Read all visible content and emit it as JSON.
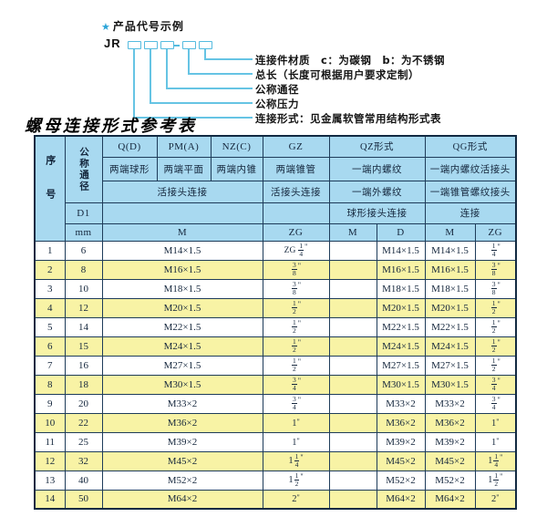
{
  "diagram": {
    "star": "★",
    "heading": "产品代号示例",
    "code_prefix": "JR",
    "box_count": 5,
    "separator": "-",
    "labels": [
      "连接件材质　c：为碳钢　b：为不锈钢",
      "总长（长度可根据用户要求定制）",
      "公称通径",
      "公称压力",
      "连接形式：见金属软管常用结构形式表"
    ]
  },
  "table": {
    "title": "螺母连接形式参考表",
    "header": {
      "seq": "序号",
      "dn": "公称通径",
      "d1": "D1",
      "mm": "mm",
      "col_q": "Q(D)",
      "col_pm": "PM(A)",
      "col_nz": "NZ(C)",
      "col_gz": "GZ",
      "col_qz": "QZ形式",
      "col_qg": "QG形式",
      "sub_q": "两端球形",
      "sub_pm": "两端平面",
      "sub_nz": "两端内锥",
      "sub_gz": "两端锥管",
      "sub_qz": "一端内螺纹",
      "sub_qg": "一端内螺纹活接头",
      "row3_left": "活接头连接",
      "row3_gz": "活接头连接",
      "row3_qz": "一端外螺纹",
      "row3_qg": "一端锥管螺纹接头",
      "row4_qz": "球形接头连接",
      "row4_qg": "连接",
      "unit_m": "M",
      "unit_zg": "ZG",
      "unit_qz_m": "M",
      "unit_qz_d": "D",
      "unit_qg_m": "M",
      "unit_qg_zg": "ZG"
    },
    "rows": [
      {
        "seq": "1",
        "mm": "6",
        "m": "M14×1.5",
        "zg": {
          "pre": "ZG",
          "num": "1",
          "den": "4"
        },
        "qz_m": "",
        "qz_d": "M14×1.5",
        "qg_m": "M14×1.5",
        "qg_zg": {
          "num": "1",
          "den": "4"
        }
      },
      {
        "seq": "2",
        "mm": "8",
        "m": "M16×1.5",
        "zg": {
          "num": "3",
          "den": "8"
        },
        "qz_m": "",
        "qz_d": "M16×1.5",
        "qg_m": "M16×1.5",
        "qg_zg": {
          "num": "3",
          "den": "8"
        }
      },
      {
        "seq": "3",
        "mm": "10",
        "m": "M18×1.5",
        "zg": {
          "num": "3",
          "den": "8"
        },
        "qz_m": "",
        "qz_d": "M18×1.5",
        "qg_m": "M18×1.5",
        "qg_zg": {
          "num": "3",
          "den": "8"
        }
      },
      {
        "seq": "4",
        "mm": "12",
        "m": "M20×1.5",
        "zg": {
          "num": "1",
          "den": "2"
        },
        "qz_m": "",
        "qz_d": "M20×1.5",
        "qg_m": "M20×1.5",
        "qg_zg": {
          "num": "1",
          "den": "2"
        }
      },
      {
        "seq": "5",
        "mm": "14",
        "m": "M22×1.5",
        "zg": {
          "num": "1",
          "den": "2"
        },
        "qz_m": "",
        "qz_d": "M22×1.5",
        "qg_m": "M22×1.5",
        "qg_zg": {
          "num": "1",
          "den": "2"
        }
      },
      {
        "seq": "6",
        "mm": "15",
        "m": "M24×1.5",
        "zg": {
          "num": "1",
          "den": "2"
        },
        "qz_m": "",
        "qz_d": "M24×1.5",
        "qg_m": "M24×1.5",
        "qg_zg": {
          "num": "1",
          "den": "2"
        }
      },
      {
        "seq": "7",
        "mm": "16",
        "m": "M27×1.5",
        "zg": {
          "num": "1",
          "den": "2"
        },
        "qz_m": "",
        "qz_d": "M27×1.5",
        "qg_m": "M27×1.5",
        "qg_zg": {
          "num": "1",
          "den": "2"
        }
      },
      {
        "seq": "8",
        "mm": "18",
        "m": "M30×1.5",
        "zg": {
          "num": "3",
          "den": "4"
        },
        "qz_m": "",
        "qz_d": "M30×1.5",
        "qg_m": "M30×1.5",
        "qg_zg": {
          "num": "3",
          "den": "4"
        }
      },
      {
        "seq": "9",
        "mm": "20",
        "m": "M33×2",
        "zg": {
          "num": "3",
          "den": "4"
        },
        "qz_m": "",
        "qz_d": "M33×2",
        "qg_m": "M33×2",
        "qg_zg": {
          "num": "3",
          "den": "4"
        }
      },
      {
        "seq": "10",
        "mm": "22",
        "m": "M36×2",
        "zg": {
          "whole": "1"
        },
        "qz_m": "",
        "qz_d": "M36×2",
        "qg_m": "M36×2",
        "qg_zg": {
          "whole": "1"
        }
      },
      {
        "seq": "11",
        "mm": "25",
        "m": "M39×2",
        "zg": {
          "whole": "1"
        },
        "qz_m": "",
        "qz_d": "M39×2",
        "qg_m": "M39×2",
        "qg_zg": {
          "whole": "1"
        }
      },
      {
        "seq": "12",
        "mm": "32",
        "m": "M45×2",
        "zg": {
          "whole": "1",
          "num": "1",
          "den": "4"
        },
        "qz_m": "",
        "qz_d": "M45×2",
        "qg_m": "M45×2",
        "qg_zg": {
          "whole": "1",
          "num": "1",
          "den": "4"
        }
      },
      {
        "seq": "13",
        "mm": "40",
        "m": "M52×2",
        "zg": {
          "whole": "1",
          "num": "1",
          "den": "2"
        },
        "qz_m": "",
        "qz_d": "M52×2",
        "qg_m": "M52×2",
        "qg_zg": {
          "whole": "1",
          "num": "1",
          "den": "2"
        }
      },
      {
        "seq": "14",
        "mm": "50",
        "m": "M64×2",
        "zg": {
          "whole": "2"
        },
        "qz_m": "",
        "qz_d": "M64×2",
        "qg_m": "M64×2",
        "qg_zg": {
          "whole": "2"
        }
      }
    ]
  },
  "colors": {
    "header_bg": "#a8d9f0",
    "row_alt_bg": "#f8f3a5",
    "grid_border": "#1e3c5a",
    "accent_blue": "#55bbdf"
  }
}
